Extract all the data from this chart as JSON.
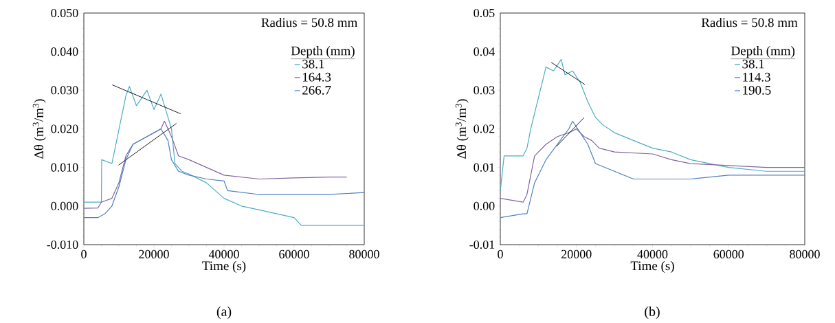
{
  "chart_data": [
    {
      "type": "line",
      "xlabel": "Time (s)",
      "ylabel": "Δθ (m$^{3}$/m$^{3}$)",
      "legend_title": "Depth (mm)",
      "annotations": [
        "Radius = 50.8 mm",
        "(a)"
      ],
      "legend": "top right",
      "xlim": [
        0,
        80000
      ],
      "ylim": [
        -0.01,
        0.05
      ],
      "xticks": [
        0,
        20000,
        40000,
        60000,
        80000
      ],
      "yticks": [
        {
          "value": -0.01,
          "label": "-0.010"
        },
        {
          "value": 0,
          "label": "0.000"
        },
        {
          "value": 0.01,
          "label": "0.010"
        },
        {
          "value": 0.02,
          "label": "0.020"
        },
        {
          "value": 0.03,
          "label": "0.030"
        },
        {
          "value": 0.04,
          "label": "0.040"
        },
        {
          "value": 0.05,
          "label": "0.050"
        }
      ],
      "series": [
        {
          "name": "38.1",
          "color": "#4bacc6",
          "x": [
            0,
            5000,
            5100,
            8000,
            12000,
            13000,
            15000,
            18000,
            20000,
            22000,
            24000,
            25000,
            26000,
            28000,
            30000,
            35000,
            40000,
            45000,
            50000,
            60000,
            62000,
            70000,
            80000
          ],
          "values": [
            0.001,
            0.001,
            0.012,
            0.011,
            0.0286,
            0.031,
            0.026,
            0.03,
            0.025,
            0.029,
            0.023,
            0.02,
            0.011,
            0.009,
            0.0083,
            0.006,
            0.002,
            0,
            -0.001,
            -0.003,
            -0.005,
            -0.005,
            -0.005
          ]
        },
        {
          "name": "164.3",
          "color": "#8064a2",
          "x": [
            0,
            4000,
            5000,
            8000,
            10000,
            12000,
            14000,
            18000,
            22000,
            23000,
            25000,
            27000,
            30000,
            35000,
            40000,
            50000,
            60000,
            70000,
            75000
          ],
          "values": [
            -0.0006,
            -0.0005,
            0.001,
            0.002,
            0.006,
            0.013,
            0.016,
            0.018,
            0.02,
            0.022,
            0.018,
            0.013,
            0.012,
            0.01,
            0.008,
            0.007,
            0.0073,
            0.0075,
            0.0075
          ]
        },
        {
          "name": "266.7",
          "color": "#4f81bd",
          "x": [
            0,
            4000,
            6000,
            8000,
            10000,
            12000,
            14000,
            18000,
            20000,
            22000,
            24000,
            25000,
            27000,
            30000,
            35000,
            40000,
            41000,
            50000,
            60000,
            70000,
            80000
          ],
          "values": [
            -0.003,
            -0.003,
            -0.002,
            0,
            0.005,
            0.012,
            0.016,
            0.018,
            0.019,
            0.02,
            0.017,
            0.012,
            0.009,
            0.008,
            0.007,
            0.0065,
            0.004,
            0.003,
            0.003,
            0.003,
            0.0035
          ]
        },
        {
          "type": "line",
          "color": "#000000",
          "x": [
            8100,
            27600
          ],
          "values": [
            0.0314,
            0.0239
          ]
        },
        {
          "type": "line",
          "color": "#000000",
          "x": [
            9900,
            26400
          ],
          "values": [
            0.0106,
            0.0214
          ]
        }
      ]
    },
    {
      "type": "line",
      "xlabel": "Time (s)",
      "ylabel": "Δθ (m$^{3}$/m$^{3}$)",
      "legend_title": "Depth (mm)",
      "annotations": [
        "Radius = 50.8 mm",
        "(b)"
      ],
      "legend": "top right",
      "xlim": [
        0,
        80000
      ],
      "ylim": [
        -0.01,
        0.05
      ],
      "xticks": [
        0,
        20000,
        40000,
        60000,
        80000
      ],
      "yticks": [
        -0.01,
        {
          "value": 0,
          "label": "0.00"
        },
        0.01,
        0.02,
        0.03,
        0.04,
        0.05
      ],
      "series": [
        {
          "name": "38.1",
          "color": "#4bacc6",
          "x": [
            0,
            1000,
            6000,
            7000,
            8000,
            10000,
            12000,
            14000,
            16000,
            17000,
            19000,
            21000,
            23000,
            25000,
            27000,
            30000,
            35000,
            40000,
            45000,
            50000,
            55000,
            60000,
            70000,
            80000
          ],
          "values": [
            0.004,
            0.013,
            0.013,
            0.015,
            0.02,
            0.028,
            0.036,
            0.035,
            0.038,
            0.034,
            0.035,
            0.032,
            0.027,
            0.023,
            0.021,
            0.019,
            0.017,
            0.015,
            0.014,
            0.012,
            0.011,
            0.01,
            0.009,
            0.009
          ]
        },
        {
          "name": "114.3",
          "color": "#8064a2",
          "x": [
            0,
            6000,
            7000,
            9000,
            12000,
            15000,
            18000,
            20000,
            22000,
            24000,
            26000,
            30000,
            40000,
            45000,
            50000,
            60000,
            70000,
            80000
          ],
          "values": [
            0.002,
            0.001,
            0.003,
            0.013,
            0.016,
            0.018,
            0.019,
            0.02,
            0.018,
            0.017,
            0.015,
            0.014,
            0.0135,
            0.012,
            0.011,
            0.0105,
            0.01,
            0.01
          ]
        },
        {
          "name": "190.5",
          "color": "#4f81bd",
          "x": [
            0,
            6000,
            7000,
            9000,
            12000,
            15000,
            18000,
            19000,
            21000,
            23000,
            25000,
            30000,
            35000,
            40000,
            50000,
            60000,
            70000,
            80000
          ],
          "values": [
            -0.003,
            -0.002,
            -0.002,
            0.006,
            0.012,
            0.016,
            0.02,
            0.022,
            0.019,
            0.016,
            0.011,
            0.009,
            0.007,
            0.007,
            0.007,
            0.008,
            0.008,
            0.008
          ]
        },
        {
          "type": "line",
          "color": "#000000",
          "x": [
            13400,
            22200
          ],
          "values": [
            0.0372,
            0.0315
          ]
        },
        {
          "type": "line",
          "color": "#000000",
          "x": [
            14800,
            22000
          ],
          "values": [
            0.0155,
            0.0229
          ]
        }
      ]
    }
  ]
}
